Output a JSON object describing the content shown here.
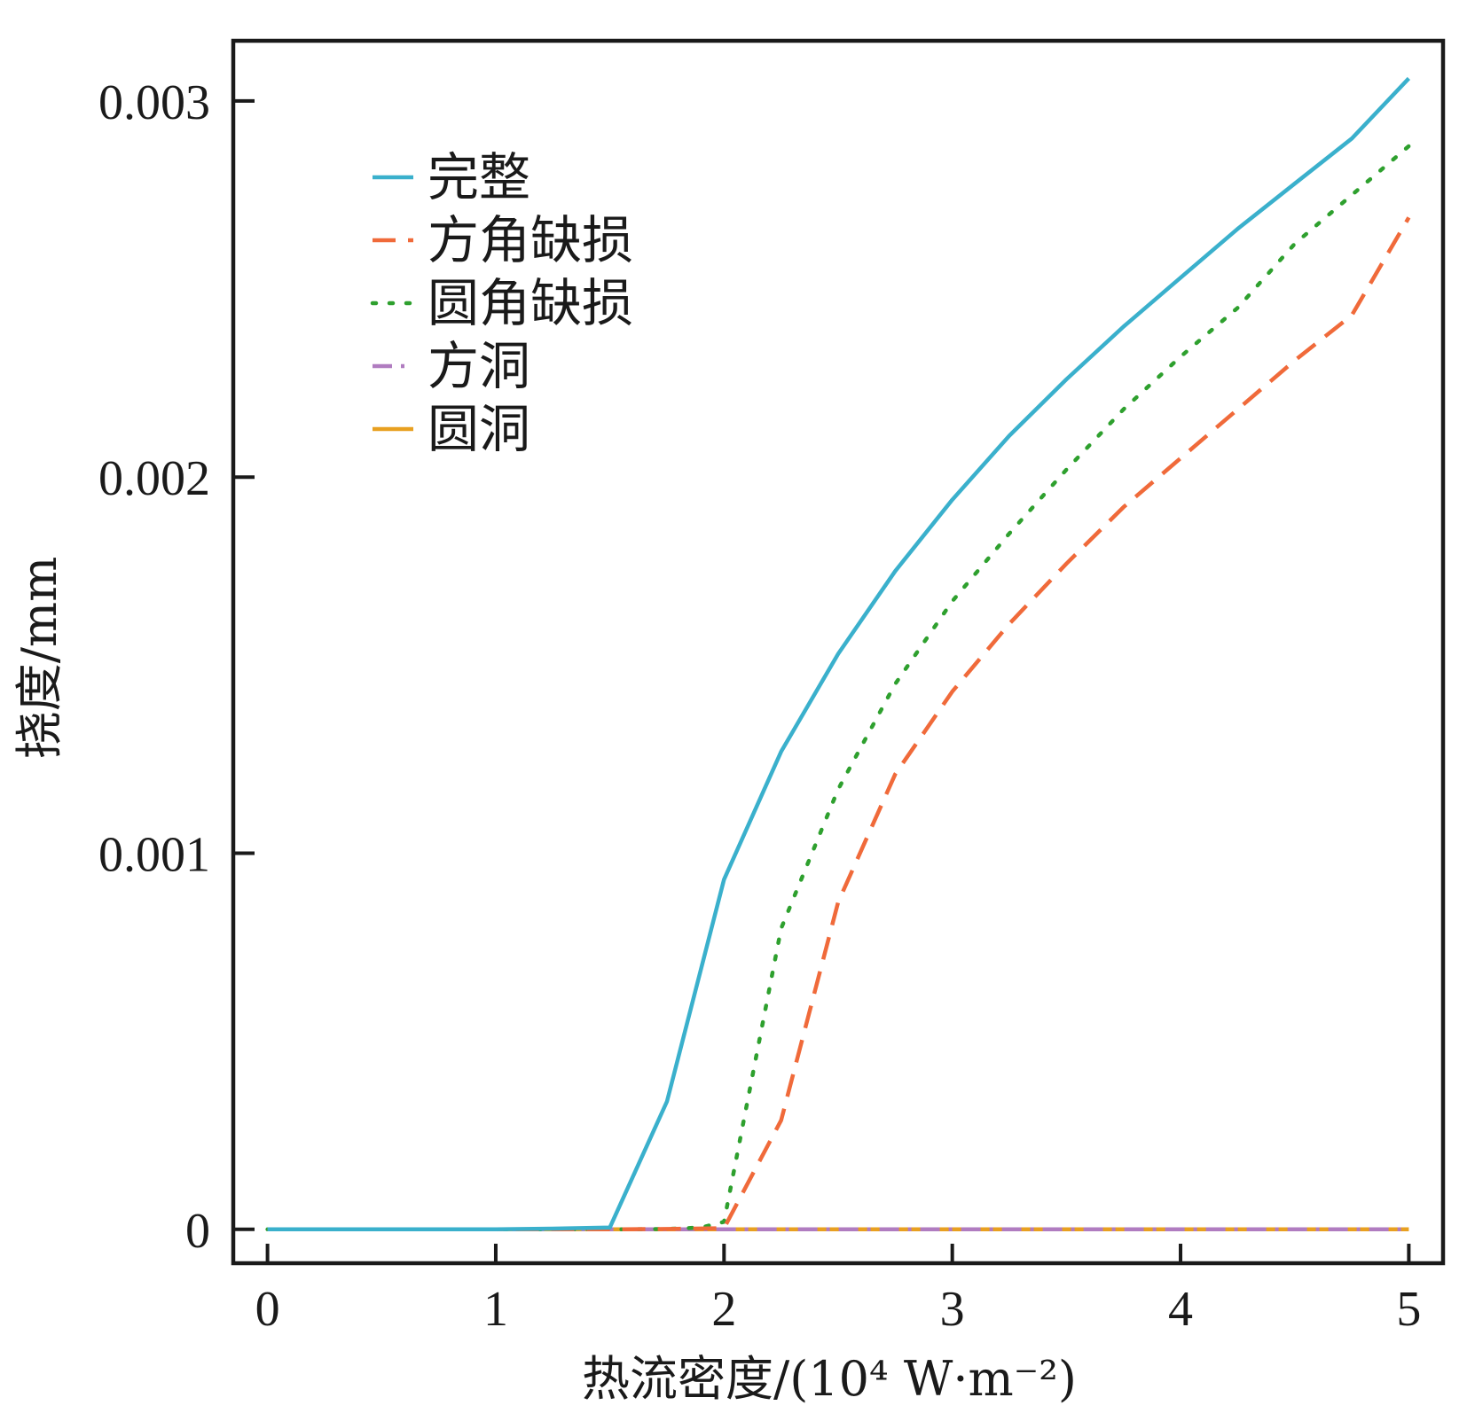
{
  "chart_data": {
    "type": "line",
    "xlabel": "热流密度/(10⁴ W·m⁻²)",
    "ylabel": "挠度/mm",
    "xlim": [
      -0.15,
      5.15
    ],
    "ylim": [
      -9e-05,
      0.00316
    ],
    "xticks": [
      0,
      1,
      2,
      3,
      4,
      5
    ],
    "xtick_labels": [
      "0",
      "1",
      "2",
      "3",
      "4",
      "5"
    ],
    "yticks": [
      0,
      0.001,
      0.002,
      0.003
    ],
    "ytick_labels": [
      "0",
      "0.001",
      "0.002",
      "0.003"
    ],
    "legend_position": "top-left",
    "series": [
      {
        "name": "完整",
        "color": "#3ab0cc",
        "dash": "solid",
        "x": [
          0,
          0.25,
          0.5,
          0.75,
          1.0,
          1.25,
          1.5,
          1.75,
          2.0,
          2.25,
          2.5,
          2.75,
          3.0,
          3.25,
          3.5,
          3.75,
          4.0,
          4.25,
          4.5,
          4.75,
          5.0
        ],
        "y": [
          0,
          0,
          0,
          0,
          0,
          2e-06,
          5e-06,
          0.00034,
          0.00093,
          0.00127,
          0.00153,
          0.00175,
          0.00194,
          0.00211,
          0.00226,
          0.0024,
          0.00253,
          0.00266,
          0.00278,
          0.0029,
          0.00306
        ]
      },
      {
        "name": "方角缺损",
        "color": "#f06a3a",
        "dash": "dashed",
        "x": [
          0,
          0.25,
          0.5,
          0.75,
          1.0,
          1.25,
          1.5,
          1.75,
          2.0,
          2.25,
          2.5,
          2.75,
          3.0,
          3.25,
          3.5,
          3.75,
          4.0,
          4.25,
          4.5,
          4.75,
          5.0
        ],
        "y": [
          0,
          0,
          0,
          0,
          0,
          0,
          0,
          1e-06,
          3e-06,
          0.00029,
          0.00087,
          0.00121,
          0.00143,
          0.00161,
          0.00177,
          0.00192,
          0.00205,
          0.00218,
          0.00231,
          0.00243,
          0.00269
        ]
      },
      {
        "name": "圆角缺损",
        "color": "#2ea02e",
        "dash": "dotted",
        "x": [
          0,
          0.25,
          0.5,
          0.75,
          1.0,
          1.25,
          1.5,
          1.75,
          1.9,
          2.0,
          2.25,
          2.5,
          2.75,
          3.0,
          3.25,
          3.5,
          3.75,
          4.0,
          4.25,
          4.5,
          4.75,
          5.0
        ],
        "y": [
          0,
          0,
          0,
          0,
          0,
          0,
          0,
          1e-06,
          5e-06,
          2e-05,
          0.0008,
          0.00117,
          0.00145,
          0.00167,
          0.00185,
          0.00202,
          0.00218,
          0.00232,
          0.00245,
          0.00262,
          0.00275,
          0.00288
        ]
      },
      {
        "name": "方洞",
        "color": "#b07cc0",
        "dash": "dashdot",
        "x": [
          0,
          1,
          2,
          3,
          4,
          5
        ],
        "y": [
          0,
          0,
          0,
          0,
          0,
          0
        ]
      },
      {
        "name": "圆洞",
        "color": "#e8a020",
        "dash": "solid",
        "x": [
          0,
          1,
          2,
          3,
          4,
          5
        ],
        "y": [
          0,
          0,
          0,
          0,
          0,
          0
        ]
      }
    ]
  }
}
